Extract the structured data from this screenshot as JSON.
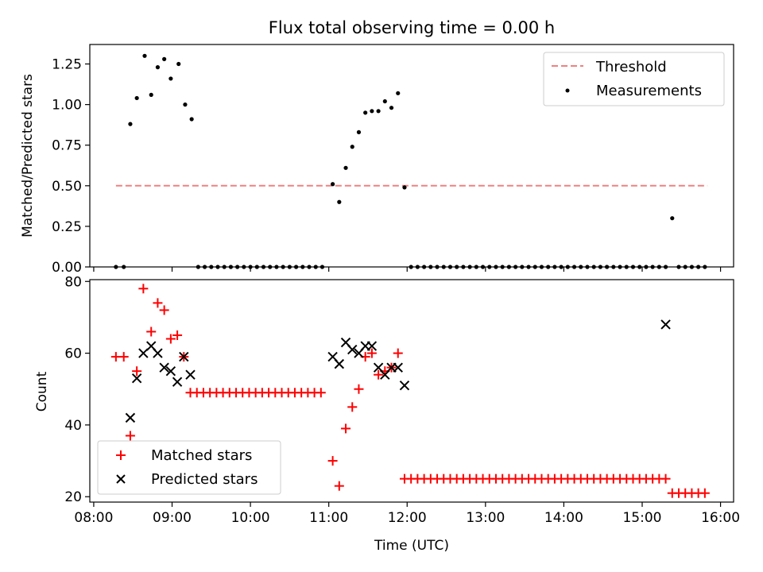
{
  "chart_data": [
    {
      "type": "scatter",
      "title": "Flux total observing time = 0.00 h",
      "xlabel": "",
      "ylabel": "Matched/Predicted stars",
      "xlim": [
        "07:57",
        "16:10"
      ],
      "ylim": [
        0,
        1.37
      ],
      "xticks": [
        "08:00",
        "09:00",
        "10:00",
        "11:00",
        "12:00",
        "13:00",
        "14:00",
        "15:00",
        "16:00"
      ],
      "show_xtick_labels": false,
      "yticks": [
        0.0,
        0.25,
        0.5,
        0.75,
        1.0,
        1.25
      ],
      "ytick_labels": [
        "0.00",
        "0.25",
        "0.50",
        "0.75",
        "1.00",
        "1.25"
      ],
      "legend_position": "top-right",
      "threshold": {
        "name": "Threshold",
        "y": 0.5,
        "x_start": "08:17",
        "x_end": "15:50",
        "color": "#f08080"
      },
      "series": [
        {
          "name": "Measurements",
          "color": "#000000",
          "marker": "dot",
          "x": [
            "08:17",
            "08:23",
            "08:28",
            "08:33",
            "08:39",
            "08:44",
            "08:49",
            "08:54",
            "08:59",
            "09:05",
            "09:10",
            "09:15",
            "09:20",
            "09:25",
            "09:30",
            "09:35",
            "09:40",
            "09:45",
            "09:50",
            "09:55",
            "10:00",
            "10:05",
            "10:10",
            "10:15",
            "10:20",
            "10:25",
            "10:30",
            "10:35",
            "10:40",
            "10:45",
            "10:50",
            "10:55",
            "11:03",
            "11:08",
            "11:13",
            "11:18",
            "11:23",
            "11:28",
            "11:33",
            "11:38",
            "11:43",
            "11:48",
            "11:53",
            "11:58",
            "12:03",
            "12:08",
            "12:13",
            "12:18",
            "12:23",
            "12:28",
            "12:33",
            "12:38",
            "12:43",
            "12:48",
            "12:53",
            "12:58",
            "13:03",
            "13:08",
            "13:13",
            "13:18",
            "13:23",
            "13:28",
            "13:33",
            "13:38",
            "13:43",
            "13:48",
            "13:53",
            "13:58",
            "14:03",
            "14:08",
            "14:13",
            "14:18",
            "14:23",
            "14:28",
            "14:33",
            "14:38",
            "14:43",
            "14:48",
            "14:53",
            "14:58",
            "15:03",
            "15:08",
            "15:13",
            "15:18",
            "15:23",
            "15:28",
            "15:33",
            "15:38",
            "15:43",
            "15:48"
          ],
          "y": [
            0.0,
            0.0,
            0.88,
            1.04,
            1.3,
            1.06,
            1.23,
            1.28,
            1.16,
            1.25,
            1.0,
            0.91,
            0.0,
            0.0,
            0.0,
            0.0,
            0.0,
            0.0,
            0.0,
            0.0,
            0.0,
            0.0,
            0.0,
            0.0,
            0.0,
            0.0,
            0.0,
            0.0,
            0.0,
            0.0,
            0.0,
            0.0,
            0.51,
            0.4,
            0.61,
            0.74,
            0.83,
            0.95,
            0.96,
            0.96,
            1.02,
            0.98,
            1.07,
            0.49,
            0.0,
            0.0,
            0.0,
            0.0,
            0.0,
            0.0,
            0.0,
            0.0,
            0.0,
            0.0,
            0.0,
            0.0,
            0.0,
            0.0,
            0.0,
            0.0,
            0.0,
            0.0,
            0.0,
            0.0,
            0.0,
            0.0,
            0.0,
            0.0,
            0.0,
            0.0,
            0.0,
            0.0,
            0.0,
            0.0,
            0.0,
            0.0,
            0.0,
            0.0,
            0.0,
            0.0,
            0.0,
            0.0,
            0.0,
            0.0,
            0.3,
            0.0,
            0.0,
            0.0,
            0.0,
            0.0
          ]
        }
      ]
    },
    {
      "type": "scatter",
      "title": "",
      "xlabel": "Time (UTC)",
      "ylabel": "Count",
      "xlim": [
        "07:57",
        "16:10"
      ],
      "ylim": [
        18.5,
        80.5
      ],
      "xticks": [
        "08:00",
        "09:00",
        "10:00",
        "11:00",
        "12:00",
        "13:00",
        "14:00",
        "15:00",
        "16:00"
      ],
      "show_xtick_labels": true,
      "yticks": [
        20,
        40,
        60,
        80
      ],
      "ytick_labels": [
        "20",
        "40",
        "60",
        "80"
      ],
      "legend_position": "bottom-left",
      "series": [
        {
          "name": "Matched stars",
          "color": "#ff0000",
          "marker": "plus",
          "x": [
            "08:17",
            "08:23",
            "08:28",
            "08:33",
            "08:38",
            "08:44",
            "08:49",
            "08:54",
            "08:59",
            "09:04",
            "09:09",
            "09:14",
            "09:19",
            "09:24",
            "09:29",
            "09:34",
            "09:39",
            "09:44",
            "09:49",
            "09:54",
            "09:59",
            "10:04",
            "10:09",
            "10:14",
            "10:19",
            "10:24",
            "10:29",
            "10:34",
            "10:39",
            "10:44",
            "10:49",
            "10:54",
            "11:03",
            "11:08",
            "11:13",
            "11:18",
            "11:23",
            "11:28",
            "11:33",
            "11:38",
            "11:43",
            "11:48",
            "11:53",
            "11:58",
            "12:03",
            "12:08",
            "12:13",
            "12:18",
            "12:23",
            "12:28",
            "12:33",
            "12:38",
            "12:43",
            "12:48",
            "12:53",
            "12:58",
            "13:03",
            "13:08",
            "13:13",
            "13:18",
            "13:23",
            "13:28",
            "13:33",
            "13:38",
            "13:43",
            "13:48",
            "13:53",
            "13:58",
            "14:03",
            "14:08",
            "14:13",
            "14:18",
            "14:23",
            "14:28",
            "14:33",
            "14:38",
            "14:43",
            "14:48",
            "14:53",
            "14:58",
            "15:03",
            "15:08",
            "15:13",
            "15:18",
            "15:23",
            "15:28",
            "15:33",
            "15:38",
            "15:43",
            "15:48"
          ],
          "y": [
            59,
            59,
            37,
            55,
            78,
            66,
            74,
            72,
            64,
            65,
            59,
            49,
            49,
            49,
            49,
            49,
            49,
            49,
            49,
            49,
            49,
            49,
            49,
            49,
            49,
            49,
            49,
            49,
            49,
            49,
            49,
            49,
            30,
            23,
            39,
            45,
            50,
            59,
            60,
            54,
            55,
            56,
            60,
            25,
            25,
            25,
            25,
            25,
            25,
            25,
            25,
            25,
            25,
            25,
            25,
            25,
            25,
            25,
            25,
            25,
            25,
            25,
            25,
            25,
            25,
            25,
            25,
            25,
            25,
            25,
            25,
            25,
            25,
            25,
            25,
            25,
            25,
            25,
            25,
            25,
            25,
            25,
            25,
            25,
            21,
            21,
            21,
            21,
            21,
            21
          ]
        },
        {
          "name": "Predicted stars",
          "color": "#000000",
          "marker": "x",
          "x": [
            "08:28",
            "08:33",
            "08:38",
            "08:44",
            "08:49",
            "08:54",
            "08:59",
            "09:04",
            "09:09",
            "09:14",
            "11:03",
            "11:08",
            "11:13",
            "11:18",
            "11:23",
            "11:28",
            "11:33",
            "11:38",
            "11:43",
            "11:48",
            "11:53",
            "11:58",
            "15:18"
          ],
          "y": [
            42,
            53,
            60,
            62,
            60,
            56,
            55,
            52,
            59,
            54,
            59,
            57,
            63,
            61,
            60,
            62,
            62,
            56,
            54,
            56,
            56,
            51,
            68
          ]
        }
      ]
    }
  ]
}
